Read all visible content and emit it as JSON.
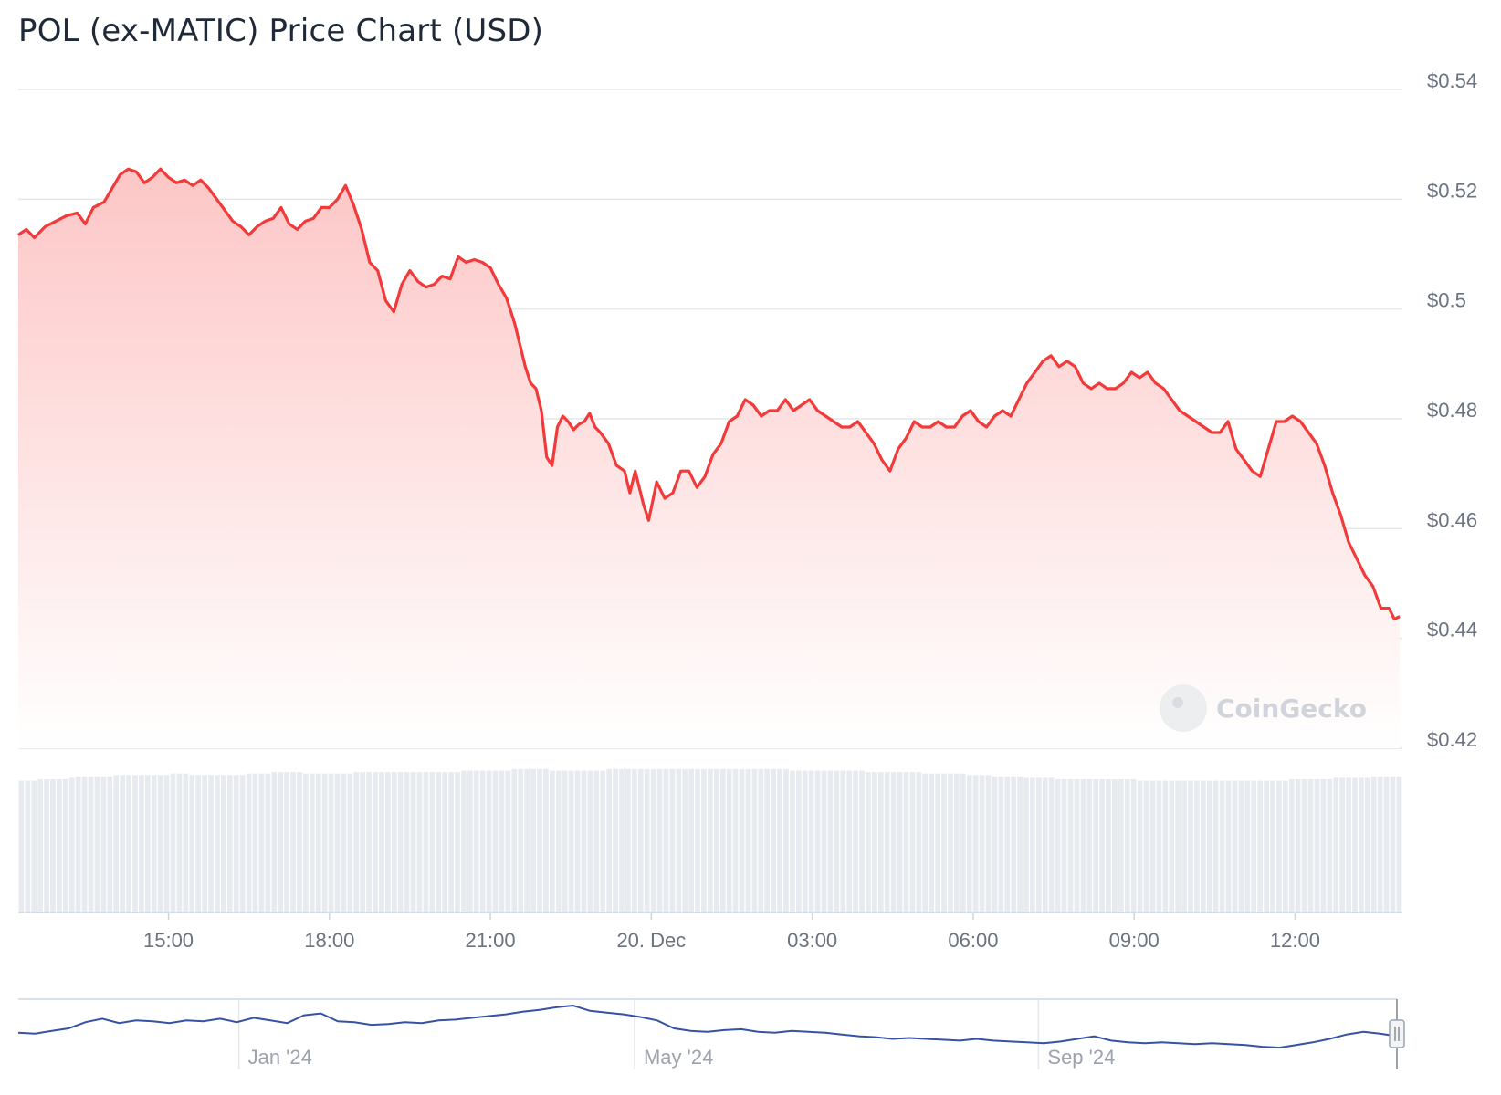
{
  "title": "POL (ex-MATIC) Price Chart (USD)",
  "watermark": "CoinGecko",
  "colors": {
    "price_line": "#f23a3a",
    "area_top": "#fdc6c6",
    "volume_bar": "#e7ebef",
    "grid": "#e6e6e6",
    "navigator_line": "#3552a3",
    "text": "#6b7280"
  },
  "chart_data": {
    "type": "area",
    "title": "POL (ex-MATIC) Price Chart (USD)",
    "x_unit": "hour",
    "xlim": [
      12.2,
      12.35
    ],
    "ylim": [
      0.42,
      0.54
    ],
    "y_ticks": [
      {
        "value": 0.54,
        "label": "$0.54"
      },
      {
        "value": 0.52,
        "label": "$0.52"
      },
      {
        "value": 0.5,
        "label": "$0.5"
      },
      {
        "value": 0.48,
        "label": "$0.48"
      },
      {
        "value": 0.46,
        "label": "$0.46"
      },
      {
        "value": 0.44,
        "label": "$0.44"
      },
      {
        "value": 0.42,
        "label": "$0.42"
      }
    ],
    "x_ticks": [
      {
        "value": 15,
        "label": "15:00"
      },
      {
        "value": 18,
        "label": "18:00"
      },
      {
        "value": 21,
        "label": "21:00"
      },
      {
        "value": 24,
        "label": "20. Dec"
      },
      {
        "value": 27,
        "label": "03:00"
      },
      {
        "value": 30,
        "label": "06:00"
      },
      {
        "value": 33,
        "label": "09:00"
      },
      {
        "value": 36,
        "label": "12:00"
      }
    ],
    "series": [
      {
        "type": "line",
        "points": [
          [
            12.2,
            0.5135
          ],
          [
            12.35,
            0.5145
          ],
          [
            12.5,
            0.513
          ],
          [
            12.7,
            0.515
          ],
          [
            12.9,
            0.516
          ],
          [
            13.1,
            0.517
          ],
          [
            13.3,
            0.5175
          ],
          [
            13.45,
            0.5155
          ],
          [
            13.6,
            0.5185
          ],
          [
            13.8,
            0.5195
          ],
          [
            13.95,
            0.522
          ],
          [
            14.1,
            0.5245
          ],
          [
            14.25,
            0.5255
          ],
          [
            14.4,
            0.525
          ],
          [
            14.55,
            0.523
          ],
          [
            14.7,
            0.524
          ],
          [
            14.85,
            0.5255
          ],
          [
            15.0,
            0.524
          ],
          [
            15.15,
            0.523
          ],
          [
            15.3,
            0.5235
          ],
          [
            15.45,
            0.5225
          ],
          [
            15.6,
            0.5235
          ],
          [
            15.75,
            0.522
          ],
          [
            15.9,
            0.52
          ],
          [
            16.05,
            0.518
          ],
          [
            16.2,
            0.516
          ],
          [
            16.35,
            0.515
          ],
          [
            16.5,
            0.5135
          ],
          [
            16.65,
            0.515
          ],
          [
            16.8,
            0.516
          ],
          [
            16.95,
            0.5165
          ],
          [
            17.1,
            0.5185
          ],
          [
            17.25,
            0.5155
          ],
          [
            17.4,
            0.5145
          ],
          [
            17.55,
            0.516
          ],
          [
            17.7,
            0.5165
          ],
          [
            17.85,
            0.5185
          ],
          [
            18.0,
            0.5185
          ],
          [
            18.15,
            0.52
          ],
          [
            18.3,
            0.5225
          ],
          [
            18.45,
            0.519
          ],
          [
            18.6,
            0.5145
          ],
          [
            18.75,
            0.5085
          ],
          [
            18.9,
            0.507
          ],
          [
            19.05,
            0.5015
          ],
          [
            19.2,
            0.4995
          ],
          [
            19.35,
            0.5045
          ],
          [
            19.5,
            0.507
          ],
          [
            19.65,
            0.505
          ],
          [
            19.8,
            0.504
          ],
          [
            19.95,
            0.5045
          ],
          [
            20.1,
            0.506
          ],
          [
            20.25,
            0.5055
          ],
          [
            20.4,
            0.5095
          ],
          [
            20.55,
            0.5085
          ],
          [
            20.7,
            0.509
          ],
          [
            20.85,
            0.5085
          ],
          [
            21.0,
            0.5075
          ],
          [
            21.15,
            0.5045
          ],
          [
            21.3,
            0.502
          ],
          [
            21.45,
            0.4975
          ],
          [
            21.55,
            0.4935
          ],
          [
            21.65,
            0.4895
          ],
          [
            21.75,
            0.4865
          ],
          [
            21.85,
            0.4855
          ],
          [
            21.95,
            0.4815
          ],
          [
            22.05,
            0.473
          ],
          [
            22.15,
            0.4715
          ],
          [
            22.25,
            0.4785
          ],
          [
            22.35,
            0.4805
          ],
          [
            22.45,
            0.4795
          ],
          [
            22.55,
            0.478
          ],
          [
            22.65,
            0.479
          ],
          [
            22.75,
            0.4795
          ],
          [
            22.85,
            0.481
          ],
          [
            22.95,
            0.4785
          ],
          [
            23.05,
            0.4775
          ],
          [
            23.2,
            0.4755
          ],
          [
            23.35,
            0.4715
          ],
          [
            23.5,
            0.4705
          ],
          [
            23.6,
            0.4665
          ],
          [
            23.7,
            0.4705
          ],
          [
            23.85,
            0.4645
          ],
          [
            23.95,
            0.4615
          ],
          [
            24.1,
            0.4685
          ],
          [
            24.25,
            0.4655
          ],
          [
            24.4,
            0.4665
          ],
          [
            24.55,
            0.4705
          ],
          [
            24.7,
            0.4705
          ],
          [
            24.85,
            0.4675
          ],
          [
            25.0,
            0.4695
          ],
          [
            25.15,
            0.4735
          ],
          [
            25.3,
            0.4755
          ],
          [
            25.45,
            0.4795
          ],
          [
            25.6,
            0.4805
          ],
          [
            25.75,
            0.4835
          ],
          [
            25.9,
            0.4825
          ],
          [
            26.05,
            0.4805
          ],
          [
            26.2,
            0.4815
          ],
          [
            26.35,
            0.4815
          ],
          [
            26.5,
            0.4835
          ],
          [
            26.65,
            0.4815
          ],
          [
            26.8,
            0.4825
          ],
          [
            26.95,
            0.4835
          ],
          [
            27.1,
            0.4815
          ],
          [
            27.25,
            0.4805
          ],
          [
            27.4,
            0.4795
          ],
          [
            27.55,
            0.4785
          ],
          [
            27.7,
            0.4785
          ],
          [
            27.85,
            0.4795
          ],
          [
            28.0,
            0.4775
          ],
          [
            28.15,
            0.4755
          ],
          [
            28.3,
            0.4725
          ],
          [
            28.45,
            0.4705
          ],
          [
            28.6,
            0.4745
          ],
          [
            28.75,
            0.4765
          ],
          [
            28.9,
            0.4795
          ],
          [
            29.05,
            0.4785
          ],
          [
            29.2,
            0.4785
          ],
          [
            29.35,
            0.4795
          ],
          [
            29.5,
            0.4785
          ],
          [
            29.65,
            0.4785
          ],
          [
            29.8,
            0.4805
          ],
          [
            29.95,
            0.4815
          ],
          [
            30.1,
            0.4795
          ],
          [
            30.25,
            0.4785
          ],
          [
            30.4,
            0.4805
          ],
          [
            30.55,
            0.4815
          ],
          [
            30.7,
            0.4805
          ],
          [
            30.85,
            0.4835
          ],
          [
            31.0,
            0.4865
          ],
          [
            31.15,
            0.4885
          ],
          [
            31.3,
            0.4905
          ],
          [
            31.45,
            0.4915
          ],
          [
            31.6,
            0.4895
          ],
          [
            31.75,
            0.4905
          ],
          [
            31.9,
            0.4895
          ],
          [
            32.05,
            0.4865
          ],
          [
            32.2,
            0.4855
          ],
          [
            32.35,
            0.4865
          ],
          [
            32.5,
            0.4855
          ],
          [
            32.65,
            0.4855
          ],
          [
            32.8,
            0.4865
          ],
          [
            32.95,
            0.4885
          ],
          [
            33.1,
            0.4875
          ],
          [
            33.25,
            0.4885
          ],
          [
            33.4,
            0.4865
          ],
          [
            33.55,
            0.4855
          ],
          [
            33.7,
            0.4835
          ],
          [
            33.85,
            0.4815
          ],
          [
            34.0,
            0.4805
          ],
          [
            34.15,
            0.4795
          ],
          [
            34.3,
            0.4785
          ],
          [
            34.45,
            0.4775
          ],
          [
            34.6,
            0.4775
          ],
          [
            34.75,
            0.4795
          ],
          [
            34.9,
            0.4745
          ],
          [
            35.05,
            0.4725
          ],
          [
            35.2,
            0.4705
          ],
          [
            35.35,
            0.4695
          ],
          [
            35.5,
            0.4745
          ],
          [
            35.65,
            0.4795
          ],
          [
            35.8,
            0.4795
          ],
          [
            35.95,
            0.4805
          ],
          [
            36.1,
            0.4795
          ],
          [
            36.25,
            0.4775
          ],
          [
            36.4,
            0.4755
          ],
          [
            36.55,
            0.4715
          ],
          [
            36.7,
            0.4665
          ],
          [
            36.85,
            0.4625
          ],
          [
            37.0,
            0.4575
          ],
          [
            37.15,
            0.4545
          ],
          [
            37.3,
            0.4515
          ],
          [
            37.45,
            0.4495
          ],
          [
            37.6,
            0.4455
          ],
          [
            37.75,
            0.4455
          ],
          [
            37.85,
            0.4435
          ],
          [
            37.95,
            0.444
          ]
        ]
      }
    ],
    "volume_relative": [
      0.92,
      0.92,
      0.92,
      0.93,
      0.93,
      0.93,
      0.93,
      0.93,
      0.94,
      0.95,
      0.95,
      0.95,
      0.95,
      0.95,
      0.95,
      0.96,
      0.96,
      0.96,
      0.96,
      0.96,
      0.96,
      0.96,
      0.96,
      0.96,
      0.97,
      0.97,
      0.97,
      0.96,
      0.96,
      0.96,
      0.96,
      0.96,
      0.96,
      0.96,
      0.96,
      0.96,
      0.97,
      0.97,
      0.97,
      0.97,
      0.98,
      0.98,
      0.98,
      0.98,
      0.98,
      0.97,
      0.97,
      0.97,
      0.97,
      0.97,
      0.97,
      0.97,
      0.97,
      0.98,
      0.98,
      0.98,
      0.98,
      0.98,
      0.98,
      0.98,
      0.98,
      0.98,
      0.98,
      0.98,
      0.98,
      0.98,
      0.98,
      0.98,
      0.98,
      0.98,
      0.99,
      0.99,
      0.99,
      0.99,
      0.99,
      0.99,
      0.99,
      0.99,
      1.0,
      1.0,
      1.0,
      1.0,
      1.0,
      1.0,
      0.99,
      0.99,
      0.99,
      0.99,
      0.99,
      0.99,
      0.99,
      0.99,
      0.99,
      1.0,
      1.0,
      1.0,
      1.0,
      1.0,
      1.0,
      1.0,
      1.0,
      1.0,
      1.0,
      1.0,
      1.0,
      1.0,
      1.0,
      1.0,
      1.0,
      1.0,
      1.0,
      1.0,
      1.0,
      1.0,
      1.0,
      1.0,
      1.0,
      1.0,
      1.0,
      1.0,
      1.0,
      1.0,
      0.99,
      0.99,
      0.99,
      0.99,
      0.99,
      0.99,
      0.99,
      0.99,
      0.99,
      0.99,
      0.99,
      0.99,
      0.98,
      0.98,
      0.98,
      0.98,
      0.98,
      0.98,
      0.98,
      0.98,
      0.98,
      0.97,
      0.97,
      0.97,
      0.97,
      0.97,
      0.97,
      0.97,
      0.96,
      0.96,
      0.96,
      0.96,
      0.95,
      0.95,
      0.95,
      0.95,
      0.95,
      0.94,
      0.94,
      0.94,
      0.94,
      0.94,
      0.93,
      0.93,
      0.93,
      0.93,
      0.93,
      0.93,
      0.93,
      0.93,
      0.93,
      0.93,
      0.93,
      0.93,
      0.93,
      0.92,
      0.92,
      0.92,
      0.92,
      0.92,
      0.92,
      0.92,
      0.92,
      0.92,
      0.92,
      0.92,
      0.92,
      0.92,
      0.92,
      0.92,
      0.92,
      0.92,
      0.92,
      0.92,
      0.92,
      0.92,
      0.92,
      0.92,
      0.92,
      0.93,
      0.93,
      0.93,
      0.93,
      0.93,
      0.93,
      0.93,
      0.94,
      0.94,
      0.94,
      0.94,
      0.94,
      0.94,
      0.95,
      0.95,
      0.95,
      0.95,
      0.95
    ]
  },
  "navigator": {
    "labels": [
      {
        "pos": 0.16,
        "label": "Jan '24"
      },
      {
        "pos": 0.447,
        "label": "May '24"
      },
      {
        "pos": 0.74,
        "label": "Sep '24"
      }
    ],
    "series": [
      0.38,
      0.36,
      0.42,
      0.48,
      0.62,
      0.7,
      0.6,
      0.66,
      0.64,
      0.6,
      0.66,
      0.64,
      0.7,
      0.62,
      0.72,
      0.66,
      0.6,
      0.78,
      0.82,
      0.64,
      0.62,
      0.56,
      0.58,
      0.62,
      0.6,
      0.66,
      0.68,
      0.72,
      0.76,
      0.8,
      0.86,
      0.9,
      0.96,
      1.0,
      0.88,
      0.84,
      0.8,
      0.74,
      0.66,
      0.48,
      0.42,
      0.4,
      0.44,
      0.46,
      0.4,
      0.38,
      0.42,
      0.4,
      0.38,
      0.34,
      0.3,
      0.28,
      0.24,
      0.26,
      0.24,
      0.22,
      0.2,
      0.24,
      0.2,
      0.18,
      0.16,
      0.14,
      0.18,
      0.24,
      0.3,
      0.2,
      0.16,
      0.14,
      0.16,
      0.14,
      0.12,
      0.14,
      0.12,
      0.1,
      0.06,
      0.04,
      0.1,
      0.16,
      0.24,
      0.34,
      0.4,
      0.36,
      0.3
    ]
  }
}
